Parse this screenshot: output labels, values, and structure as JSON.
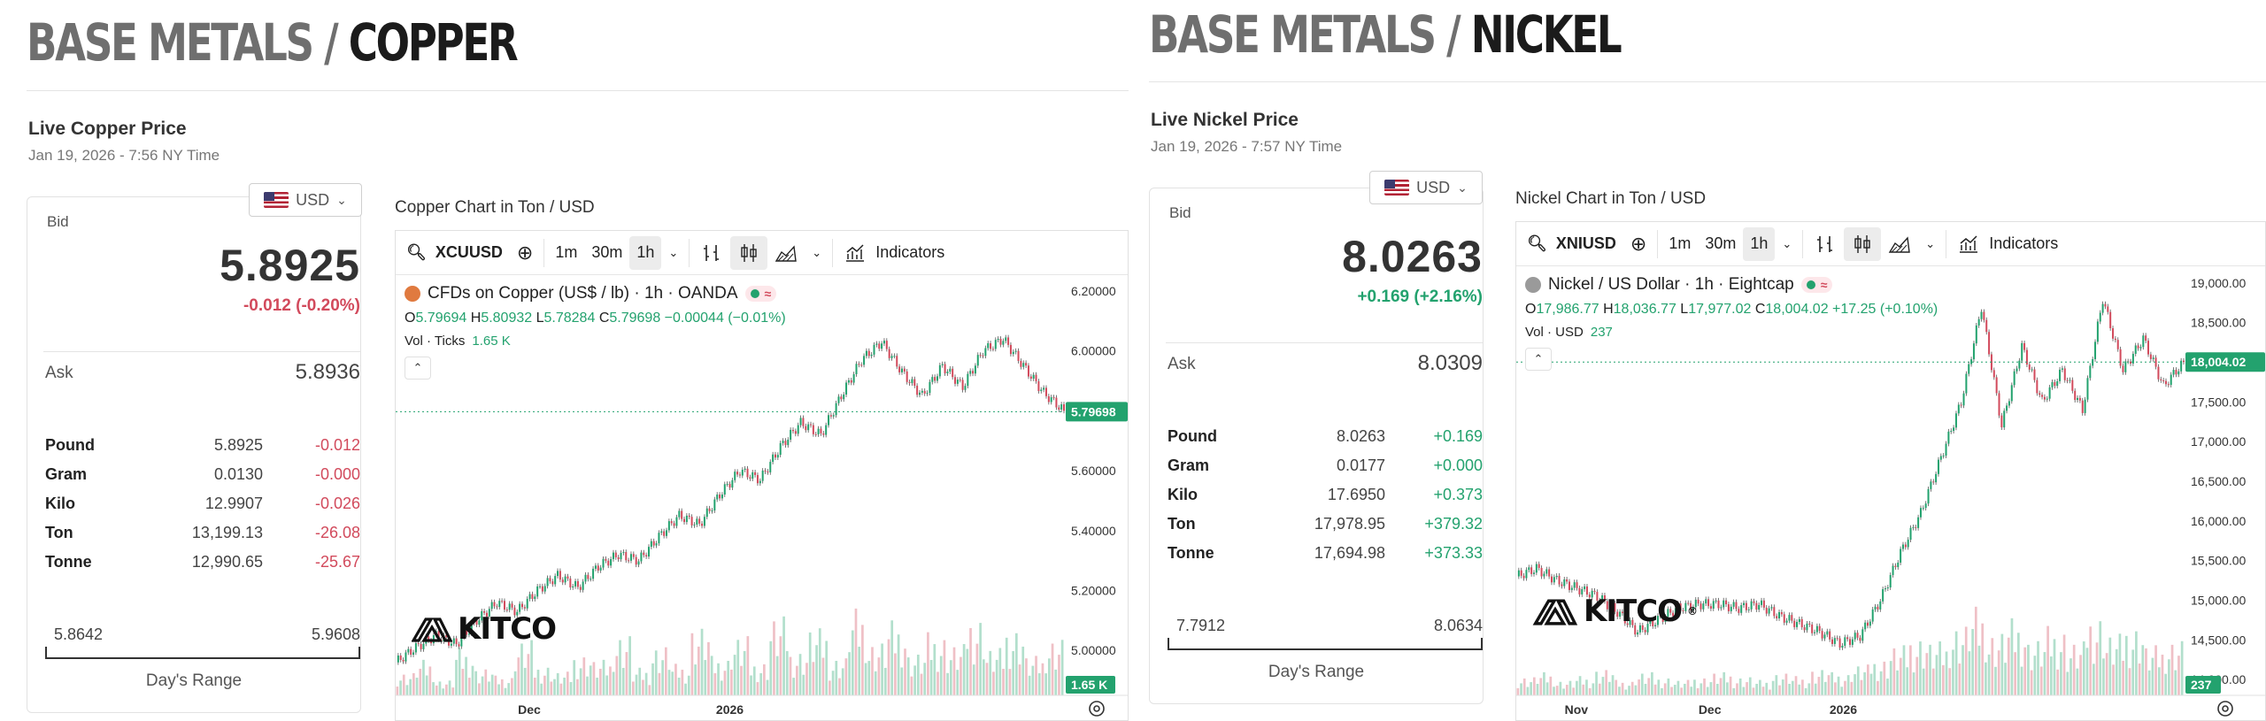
{
  "copper": {
    "category": "BASE METALS",
    "metal": "COPPER",
    "live_title": "Live Copper Price",
    "time": "Jan 19, 2026 - 7:56 NY Time",
    "currency": "USD",
    "bid_label": "Bid",
    "bid": "5.8925",
    "change": "-0.012 (-0.20%)",
    "ask_label": "Ask",
    "ask": "5.8936",
    "units": [
      {
        "name": "Pound",
        "value": "5.8925",
        "change": "-0.012"
      },
      {
        "name": "Gram",
        "value": "0.0130",
        "change": "-0.000"
      },
      {
        "name": "Kilo",
        "value": "12.9907",
        "change": "-0.026"
      },
      {
        "name": "Ton",
        "value": "13,199.13",
        "change": "-26.08"
      },
      {
        "name": "Tonne",
        "value": "12,990.65",
        "change": "-25.67"
      }
    ],
    "range_low": "5.8642",
    "range_high": "5.9608",
    "range_label": "Day's Range",
    "chart_caption": "Copper Chart in Ton / USD",
    "toolbar": {
      "symbol": "XCUUSD",
      "intervals": [
        "1m",
        "30m",
        "1h"
      ],
      "indicators": "Indicators"
    },
    "info_title": "CFDs on Copper (US$ / lb) · 1h · OANDA",
    "ohlc": {
      "o": "5.79694",
      "h": "5.80932",
      "l": "5.78284",
      "c": "5.79698",
      "chg": "−0.00044 (−0.01%)"
    },
    "vol_label": "Vol · Ticks",
    "vol_value": "1.65 K",
    "price_tag": "5.79698",
    "vol_tag": "1.65 K",
    "logo": "KITCO",
    "icon_color": "#e07a3f"
  },
  "nickel": {
    "category": "BASE METALS",
    "metal": "NICKEL",
    "live_title": "Live Nickel Price",
    "time": "Jan 19, 2026 - 7:57 NY Time",
    "currency": "USD",
    "bid_label": "Bid",
    "bid": "8.0263",
    "change": "+0.169 (+2.16%)",
    "ask_label": "Ask",
    "ask": "8.0309",
    "units": [
      {
        "name": "Pound",
        "value": "8.0263",
        "change": "+0.169"
      },
      {
        "name": "Gram",
        "value": "0.0177",
        "change": "+0.000"
      },
      {
        "name": "Kilo",
        "value": "17.6950",
        "change": "+0.373"
      },
      {
        "name": "Ton",
        "value": "17,978.95",
        "change": "+379.32"
      },
      {
        "name": "Tonne",
        "value": "17,694.98",
        "change": "+373.33"
      }
    ],
    "range_low": "7.7912",
    "range_high": "8.0634",
    "range_label": "Day's Range",
    "chart_caption": "Nickel Chart in Ton / USD",
    "toolbar": {
      "symbol": "XNIUSD",
      "intervals": [
        "1m",
        "30m",
        "1h"
      ],
      "indicators": "Indicators"
    },
    "info_title": "Nickel / US Dollar · 1h · Eightcap",
    "ohlc": {
      "o": "17,986.77",
      "h": "18,036.77",
      "l": "17,977.02",
      "c": "18,004.02",
      "chg": "+17.25 (+0.10%)"
    },
    "vol_label": "Vol · USD",
    "vol_value": "237",
    "price_tag": "18,004.02",
    "vol_tag": "237",
    "logo": "KITCO",
    "icon_color": "#9a9a9a"
  },
  "chart_data": [
    {
      "type": "line",
      "series": [
        {
          "values": [
            4.96,
            5.01,
            5.05,
            5.02,
            5.1,
            5.16,
            5.13,
            5.2,
            5.25,
            5.21,
            5.28,
            5.32,
            5.3,
            5.38,
            5.45,
            5.42,
            5.52,
            5.6,
            5.57,
            5.68,
            5.76,
            5.72,
            5.85,
            5.97,
            6.03,
            5.93,
            5.85,
            5.95,
            5.88,
            6.0,
            6.04,
            5.95,
            5.86,
            5.8
          ]
        }
      ],
      "x_ticks": [
        "Dec",
        "2026"
      ],
      "y_ticks": [
        "6.20000",
        "6.00000",
        "5.80000",
        "5.60000",
        "5.40000",
        "5.20000",
        "5.00000"
      ],
      "ylim": [
        4.85,
        6.25
      ],
      "volume": [
        0.6,
        0.9,
        0.4,
        1.2,
        0.7,
        0.5,
        1.4,
        0.8,
        0.6,
        1.1,
        0.9,
        1.6,
        0.7,
        1.3,
        0.8,
        1.8,
        1.0,
        1.5,
        0.9,
        2.0,
        1.2,
        1.7,
        1.0,
        2.2,
        1.4,
        1.9,
        1.1,
        1.6,
        1.3,
        2.1,
        1.2,
        1.8,
        1.0,
        1.5
      ]
    },
    {
      "type": "line",
      "series": [
        {
          "values": [
            15300,
            15400,
            15250,
            15150,
            15050,
            14850,
            14600,
            14750,
            14900,
            14950,
            14950,
            14900,
            14950,
            14800,
            14700,
            14600,
            14450,
            14550,
            15000,
            15600,
            16100,
            16800,
            17500,
            18700,
            17200,
            18200,
            17500,
            17900,
            17400,
            18800,
            17900,
            18300,
            17700,
            18004
          ]
        }
      ],
      "x_ticks": [
        "Nov",
        "Dec",
        "2026"
      ],
      "y_ticks": [
        "19,000.00",
        "18,500.00",
        "17,500.00",
        "17,000.00",
        "16,500.00",
        "16,000.00",
        "15,500.00",
        "15,000.00",
        "14,500.00",
        "14,000.00"
      ],
      "ylim": [
        13800,
        19200
      ],
      "volume": [
        0.5,
        0.6,
        0.4,
        0.5,
        0.7,
        0.4,
        0.6,
        0.5,
        0.4,
        0.5,
        0.6,
        0.5,
        0.4,
        0.6,
        0.5,
        0.7,
        0.6,
        0.8,
        1.0,
        1.3,
        1.6,
        1.4,
        1.9,
        2.3,
        1.7,
        2.0,
        1.5,
        1.8,
        1.4,
        2.2,
        1.6,
        1.9,
        1.3,
        1.5
      ]
    }
  ]
}
